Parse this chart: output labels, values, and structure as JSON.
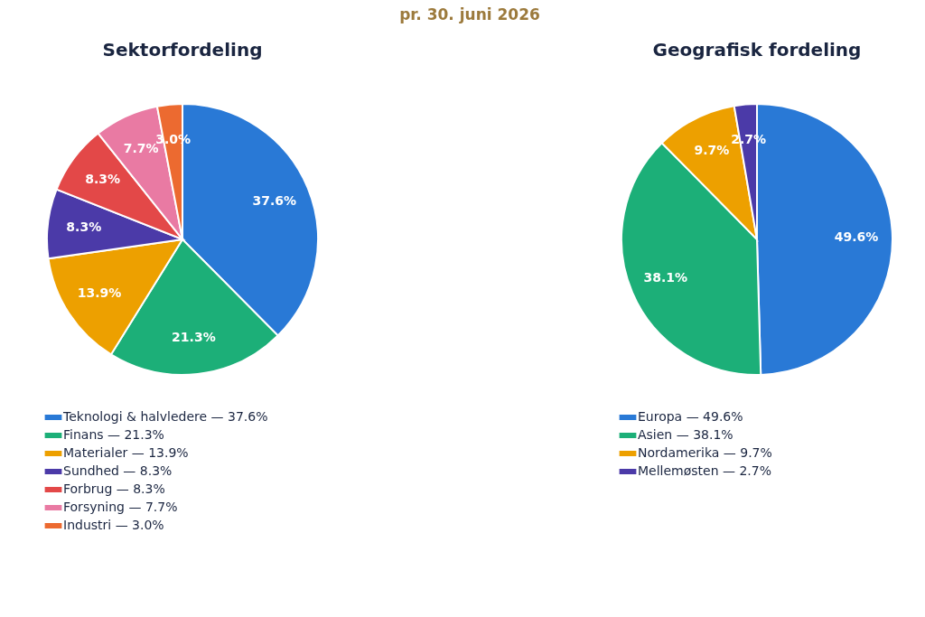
{
  "chart_data": [
    {
      "type": "pie",
      "title": "Sektorfordeling",
      "annotations": [
        "pr. 30. juni 2026"
      ],
      "categories": [
        "Teknologi & halvledere — 37.6%",
        "Finans — 21.3%",
        "Materialer — 13.9%",
        "Sundhed — 8.3%",
        "Forbrug — 8.3%",
        "Forsyning — 7.7%",
        "Industri — 3.0%"
      ],
      "values": [
        37.6,
        21.3,
        13.9,
        8.3,
        8.3,
        7.7,
        3.0
      ],
      "colors": [
        "#2979d6",
        "#1caf78",
        "#eda000",
        "#4b3aa8",
        "#e34848",
        "#e97aa3",
        "#ec6a30"
      ],
      "value_labels": [
        "37.6%",
        "21.3%",
        "13.9%",
        "8.3%",
        "8.3%",
        "7.7%",
        "3.0%"
      ],
      "legend": "bottom"
    },
    {
      "type": "pie",
      "title": "Geografisk fordeling",
      "categories": [
        "Europa — 49.6%",
        "Asien — 38.1%",
        "Nordamerika — 9.7%",
        "Mellemøsten — 2.7%"
      ],
      "values": [
        49.6,
        38.1,
        9.7,
        2.7
      ],
      "colors": [
        "#2979d6",
        "#1caf78",
        "#eda000",
        "#4b3aa8"
      ],
      "value_labels": [
        "49.6%",
        "38.1%",
        "9.7%",
        "2.7%"
      ],
      "legend": "bottom"
    }
  ]
}
